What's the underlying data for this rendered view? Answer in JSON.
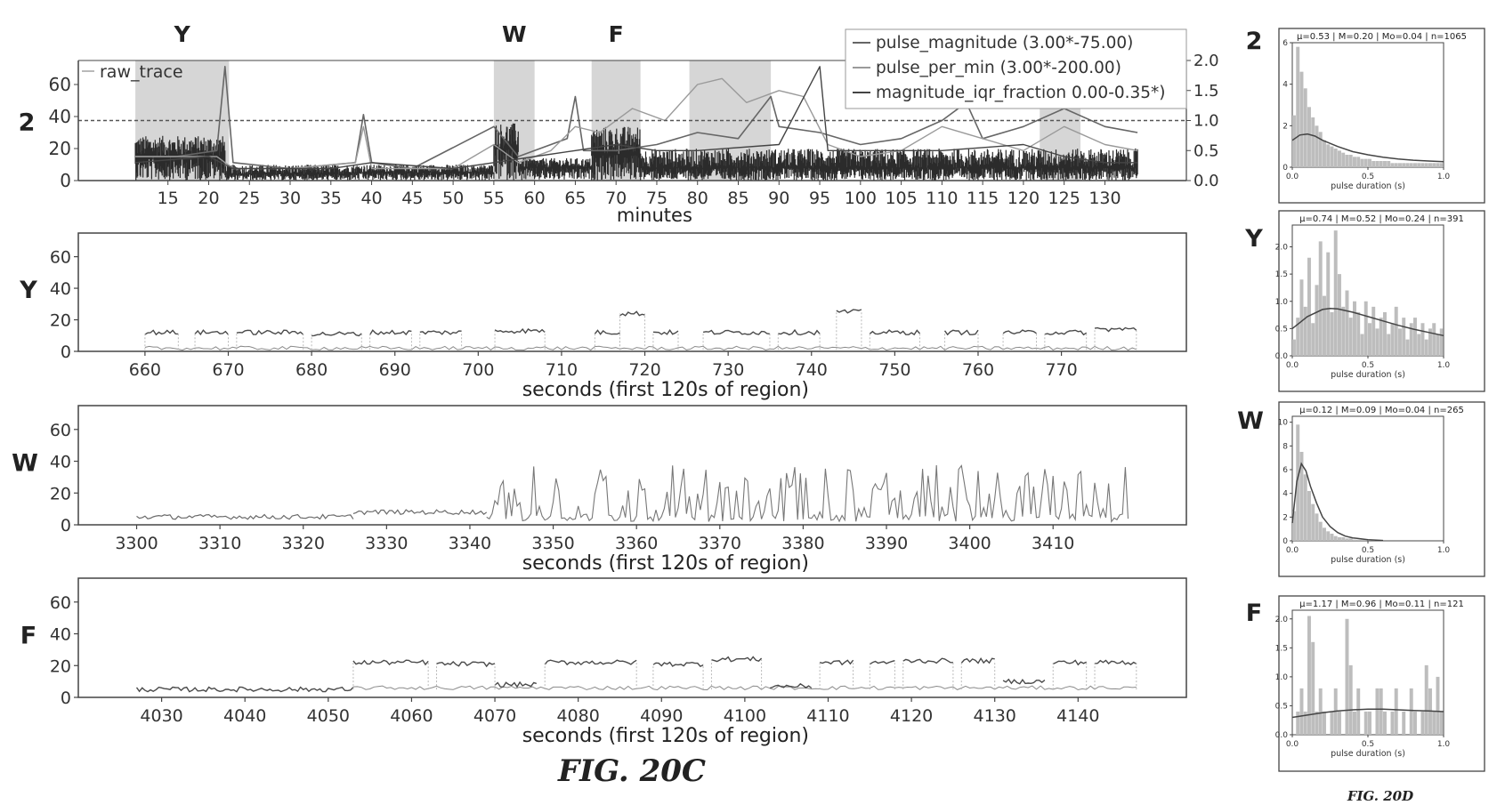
{
  "figures": {
    "fig_20c": "FIG. 20C",
    "fig_20d": "FIG. 20D"
  },
  "colors": {
    "trace": "#2b2b2b",
    "grey": "#8a8a8a",
    "light": "#b9b9b9",
    "shade": "#cfcfcf",
    "axis": "#444444"
  },
  "chart_data": [
    {
      "id": "overview",
      "type": "line",
      "row_label": "2",
      "xlabel": "minutes",
      "xlim": [
        4,
        140
      ],
      "ylim": [
        0,
        75
      ],
      "y2lim": [
        0,
        2.0
      ],
      "x_ticks": [
        15,
        20,
        25,
        30,
        35,
        40,
        45,
        50,
        55,
        60,
        65,
        70,
        75,
        80,
        85,
        90,
        95,
        100,
        105,
        110,
        115,
        120,
        125,
        130
      ],
      "y_ticks": [
        0,
        20,
        40,
        60
      ],
      "y2_ticks": [
        "0.0",
        "0.5",
        "1.0",
        "1.5",
        "2.0"
      ],
      "threshold_y2": 1.0,
      "legend": {
        "position": "upper-left",
        "entries": [
          "raw_trace"
        ]
      },
      "legend_right": {
        "position": "upper-right",
        "entries": [
          "pulse_magnitude (3.00*-75.00)",
          "pulse_per_min (3.00*-200.00)",
          "magnitude_iqr_fraction 0.00-0.35*)"
        ]
      },
      "regions": [
        {
          "label": "Y",
          "x0": 11,
          "x1": 22.5
        },
        {
          "label": "W",
          "x0": 55,
          "x1": 60
        },
        {
          "label": "F",
          "x0": 67,
          "x1": 73
        },
        {
          "label": "",
          "x0": 79,
          "x1": 89
        },
        {
          "label": "",
          "x0": 122,
          "x1": 127
        }
      ],
      "series": [
        {
          "name": "raw_trace",
          "segments": [
            {
              "x0": 11,
              "x1": 22,
              "level": 15,
              "peak": 28
            },
            {
              "x0": 22,
              "x1": 37,
              "level": 4,
              "peak": 10
            },
            {
              "x0": 37,
              "x1": 55,
              "level": 5,
              "peak": 10
            },
            {
              "x0": 55,
              "x1": 58,
              "level": 20,
              "peak": 36
            },
            {
              "x0": 58,
              "x1": 67,
              "level": 8,
              "peak": 14
            },
            {
              "x0": 67,
              "x1": 73,
              "level": 16,
              "peak": 34
            },
            {
              "x0": 73,
              "x1": 134,
              "level": 8,
              "peak": 20
            }
          ]
        },
        {
          "name": "pulse_magnitude (3.00*-75.00)",
          "x": [
            11,
            16,
            21,
            22,
            23,
            30,
            38,
            39,
            40,
            45,
            55,
            58,
            64,
            65,
            66,
            70,
            75,
            80,
            85,
            89,
            90,
            95,
            100,
            105,
            110,
            113,
            115,
            120,
            125,
            130,
            134
          ],
          "y": [
            0.4,
            0.4,
            0.5,
            1.9,
            0.3,
            0.2,
            0.3,
            1.1,
            0.3,
            0.2,
            0.9,
            0.4,
            0.7,
            1.4,
            0.5,
            0.5,
            0.6,
            0.8,
            0.7,
            1.4,
            0.9,
            0.8,
            0.6,
            0.7,
            1.0,
            1.3,
            0.7,
            0.9,
            1.2,
            0.9,
            0.8
          ]
        },
        {
          "name": "pulse_per_min (3.00*-200.00)",
          "x": [
            11,
            16,
            21,
            23,
            30,
            38,
            39,
            40,
            50,
            55,
            58,
            62,
            65,
            68,
            72,
            76,
            80,
            83,
            86,
            90,
            93,
            96,
            100,
            105,
            110,
            115,
            120,
            125,
            130,
            134
          ],
          "y": [
            0.4,
            0.4,
            0.4,
            0.2,
            0.2,
            0.3,
            0.9,
            0.2,
            0.2,
            0.6,
            0.3,
            0.5,
            0.9,
            0.8,
            1.2,
            1.0,
            1.6,
            1.7,
            1.3,
            1.5,
            1.4,
            0.6,
            0.4,
            0.5,
            0.9,
            0.7,
            0.5,
            0.9,
            0.6,
            0.5
          ]
        },
        {
          "name": "magnitude_iqr_fraction 0.00-0.35*)",
          "x": [
            11,
            20,
            23,
            35,
            40,
            50,
            55,
            60,
            65,
            70,
            75,
            80,
            90,
            95,
            96,
            100,
            110,
            120,
            125,
            130,
            134
          ],
          "y": [
            0.3,
            0.4,
            0.2,
            0.2,
            0.3,
            0.2,
            0.3,
            0.4,
            0.5,
            0.6,
            0.5,
            0.5,
            0.6,
            1.9,
            0.5,
            0.5,
            0.5,
            0.6,
            0.4,
            0.3,
            0.3
          ]
        }
      ]
    },
    {
      "id": "region_Y",
      "type": "line",
      "row_label": "Y",
      "xlabel": "seconds (first 120s of region)",
      "xlim": [
        652,
        785
      ],
      "ylim": [
        0,
        75
      ],
      "x_ticks": [
        660,
        670,
        680,
        690,
        700,
        710,
        720,
        730,
        740,
        750,
        760,
        770
      ],
      "y_ticks": [
        0,
        20,
        40,
        60
      ],
      "trace_x_range": [
        660,
        779
      ],
      "segments": [
        {
          "x0": 660,
          "x1": 664,
          "level": 12
        },
        {
          "x0": 666,
          "x1": 670,
          "level": 12
        },
        {
          "x0": 671,
          "x1": 679,
          "level": 12
        },
        {
          "x0": 680,
          "x1": 686,
          "level": 11
        },
        {
          "x0": 687,
          "x1": 692,
          "level": 12
        },
        {
          "x0": 693,
          "x1": 698,
          "level": 12
        },
        {
          "x0": 702,
          "x1": 708,
          "level": 13
        },
        {
          "x0": 714,
          "x1": 717,
          "level": 12
        },
        {
          "x0": 717,
          "x1": 720,
          "level": 24
        },
        {
          "x0": 721,
          "x1": 724,
          "level": 12
        },
        {
          "x0": 727,
          "x1": 735,
          "level": 12
        },
        {
          "x0": 736,
          "x1": 741,
          "level": 12
        },
        {
          "x0": 743,
          "x1": 746,
          "level": 25
        },
        {
          "x0": 747,
          "x1": 753,
          "level": 12
        },
        {
          "x0": 756,
          "x1": 760,
          "level": 12
        },
        {
          "x0": 763,
          "x1": 767,
          "level": 12
        },
        {
          "x0": 768,
          "x1": 773,
          "level": 12
        },
        {
          "x0": 774,
          "x1": 779,
          "level": 14
        }
      ]
    },
    {
      "id": "region_W",
      "type": "line",
      "row_label": "W",
      "xlabel": "seconds (first 120s of region)",
      "xlim": [
        3293,
        3426
      ],
      "ylim": [
        0,
        75
      ],
      "x_ticks": [
        3300,
        3310,
        3320,
        3330,
        3340,
        3350,
        3360,
        3370,
        3380,
        3390,
        3400,
        3410
      ],
      "y_ticks": [
        0,
        20,
        40,
        60
      ],
      "trace_x_range": [
        3300,
        3419
      ],
      "segments": [
        {
          "x0": 3300,
          "x1": 3326,
          "level": 5
        },
        {
          "x0": 3326,
          "x1": 3342,
          "level": 8
        }
      ],
      "spiky_x_range": [
        3342,
        3419
      ],
      "spiky_peak": 38
    },
    {
      "id": "region_F",
      "type": "line",
      "row_label": "F",
      "xlabel": "seconds (first 120s of region)",
      "xlim": [
        4020,
        4153
      ],
      "ylim": [
        0,
        75
      ],
      "x_ticks": [
        4030,
        4040,
        4050,
        4060,
        4070,
        4080,
        4090,
        4100,
        4110,
        4120,
        4130,
        4140
      ],
      "y_ticks": [
        0,
        20,
        40,
        60
      ],
      "trace_x_range": [
        4027,
        4147
      ],
      "segments": [
        {
          "x0": 4027,
          "x1": 4053,
          "level": 5
        },
        {
          "x0": 4053,
          "x1": 4062,
          "level": 22
        },
        {
          "x0": 4063,
          "x1": 4070,
          "level": 21
        },
        {
          "x0": 4070,
          "x1": 4075,
          "level": 8
        },
        {
          "x0": 4076,
          "x1": 4087,
          "level": 22
        },
        {
          "x0": 4089,
          "x1": 4095,
          "level": 21
        },
        {
          "x0": 4096,
          "x1": 4102,
          "level": 24
        },
        {
          "x0": 4103,
          "x1": 4108,
          "level": 7
        },
        {
          "x0": 4109,
          "x1": 4113,
          "level": 22
        },
        {
          "x0": 4115,
          "x1": 4118,
          "level": 22
        },
        {
          "x0": 4119,
          "x1": 4125,
          "level": 23
        },
        {
          "x0": 4126,
          "x1": 4130,
          "level": 23
        },
        {
          "x0": 4131,
          "x1": 4136,
          "level": 10
        },
        {
          "x0": 4137,
          "x1": 4141,
          "level": 22
        },
        {
          "x0": 4142,
          "x1": 4147,
          "level": 22
        }
      ]
    },
    {
      "id": "hist_2",
      "type": "bar",
      "row_label": "2",
      "title": "μ=0.53 | M=0.20 | Mo=0.04 | n=1065",
      "xlabel": "pulse duration (s)",
      "xlim": [
        0,
        1.0
      ],
      "ylim": [
        0,
        6
      ],
      "x_ticks": [
        "0.0",
        "0.5",
        "1.0"
      ],
      "y_ticks": [
        "0",
        "2",
        "4",
        "6"
      ],
      "bin_width": 0.025,
      "values": [
        2.5,
        5.8,
        4.6,
        3.8,
        2.9,
        2.4,
        2.0,
        1.7,
        1.3,
        1.1,
        1.0,
        0.9,
        0.8,
        0.7,
        0.6,
        0.6,
        0.5,
        0.5,
        0.4,
        0.4,
        0.4,
        0.3,
        0.3,
        0.3,
        0.3,
        0.3,
        0.2,
        0.2,
        0.2,
        0.2,
        0.2,
        0.2,
        0.2,
        0.2,
        0.2,
        0.2,
        0.2,
        0.2,
        0.2,
        0.2
      ],
      "fit": {
        "x": [
          0,
          0.05,
          0.1,
          0.15,
          0.2,
          0.3,
          0.4,
          0.5,
          0.6,
          0.7,
          0.8,
          0.9,
          1.0
        ],
        "y": [
          1.3,
          1.55,
          1.6,
          1.5,
          1.3,
          1.0,
          0.75,
          0.6,
          0.48,
          0.4,
          0.34,
          0.3,
          0.27
        ]
      }
    },
    {
      "id": "hist_Y",
      "type": "bar",
      "row_label": "Y",
      "title": "μ=0.74 | M=0.52 | Mo=0.24 | n=391",
      "xlabel": "pulse duration (s)",
      "xlim": [
        0,
        1.0
      ],
      "ylim": [
        0,
        2.4
      ],
      "x_ticks": [
        "0.0",
        "0.5",
        "1.0"
      ],
      "y_ticks": [
        "0.0",
        "0.5",
        "1.0",
        "1.5",
        "2.0"
      ],
      "bin_width": 0.025,
      "values": [
        0.3,
        0.7,
        1.4,
        0.9,
        1.8,
        0.6,
        1.3,
        2.1,
        1.1,
        1.9,
        0.8,
        2.3,
        1.5,
        0.9,
        1.2,
        0.7,
        1.0,
        0.8,
        0.4,
        1.0,
        0.6,
        0.9,
        0.5,
        0.7,
        0.8,
        0.4,
        0.6,
        0.9,
        0.5,
        0.7,
        0.3,
        0.6,
        0.7,
        0.4,
        0.6,
        0.3,
        0.5,
        0.6,
        0.4,
        0.5
      ],
      "fit": {
        "x": [
          0,
          0.1,
          0.2,
          0.25,
          0.3,
          0.4,
          0.5,
          0.6,
          0.7,
          0.8,
          0.9,
          1.0
        ],
        "y": [
          0.5,
          0.72,
          0.85,
          0.87,
          0.86,
          0.8,
          0.72,
          0.64,
          0.56,
          0.49,
          0.43,
          0.37
        ]
      }
    },
    {
      "id": "hist_W",
      "type": "bar",
      "row_label": "W",
      "title": "μ=0.12 | M=0.09 | Mo=0.04 | n=265",
      "xlabel": "pulse duration (s)",
      "xlim": [
        0,
        1.0
      ],
      "ylim": [
        0,
        10.5
      ],
      "x_ticks": [
        "0.0",
        "0.5",
        "1.0"
      ],
      "y_ticks": [
        "0",
        "2",
        "4",
        "6",
        "8",
        "10"
      ],
      "bin_width": 0.025,
      "values": [
        2.5,
        9.8,
        7.5,
        5.6,
        4.2,
        3.1,
        2.3,
        1.6,
        1.1,
        0.8,
        0.6,
        0.4,
        0.3,
        0.3,
        0.2,
        0.2,
        0.1,
        0.1,
        0.1,
        0.1,
        0.05,
        0.05,
        0,
        0,
        0,
        0,
        0,
        0,
        0,
        0,
        0,
        0,
        0,
        0,
        0,
        0,
        0,
        0,
        0,
        0
      ],
      "fit": {
        "x": [
          0,
          0.03,
          0.06,
          0.09,
          0.12,
          0.16,
          0.2,
          0.25,
          0.3,
          0.35,
          0.4,
          0.5,
          0.6
        ],
        "y": [
          1.5,
          5.0,
          6.5,
          5.9,
          4.6,
          3.2,
          2.0,
          1.2,
          0.7,
          0.4,
          0.25,
          0.1,
          0.03
        ]
      }
    },
    {
      "id": "hist_F",
      "type": "bar",
      "row_label": "F",
      "title": "μ=1.17 | M=0.96 | Mo=0.11 | n=121",
      "xlabel": "pulse duration (s)",
      "xlim": [
        0,
        1.0
      ],
      "ylim": [
        0,
        2.15
      ],
      "x_ticks": [
        "0.0",
        "0.5",
        "1.0"
      ],
      "y_ticks": [
        "0.0",
        "0.5",
        "1.0",
        "1.5",
        "2.0"
      ],
      "bin_width": 0.025,
      "values": [
        0,
        0.4,
        0.8,
        0.4,
        2.05,
        1.6,
        0.4,
        0.8,
        0.4,
        0,
        0.4,
        0.8,
        0.4,
        0,
        2.0,
        1.2,
        0.4,
        0.8,
        0,
        0.4,
        0.4,
        0,
        0.8,
        0.8,
        0.4,
        0,
        0.4,
        0.8,
        0,
        0.4,
        0,
        0.8,
        0.4,
        0,
        0.4,
        1.2,
        0.8,
        0.4,
        1.0,
        0.4
      ],
      "fit": {
        "x": [
          0,
          0.1,
          0.2,
          0.3,
          0.4,
          0.5,
          0.6,
          0.7,
          0.8,
          0.9,
          1.0
        ],
        "y": [
          0.3,
          0.34,
          0.38,
          0.41,
          0.43,
          0.44,
          0.44,
          0.43,
          0.42,
          0.41,
          0.4
        ]
      }
    }
  ]
}
